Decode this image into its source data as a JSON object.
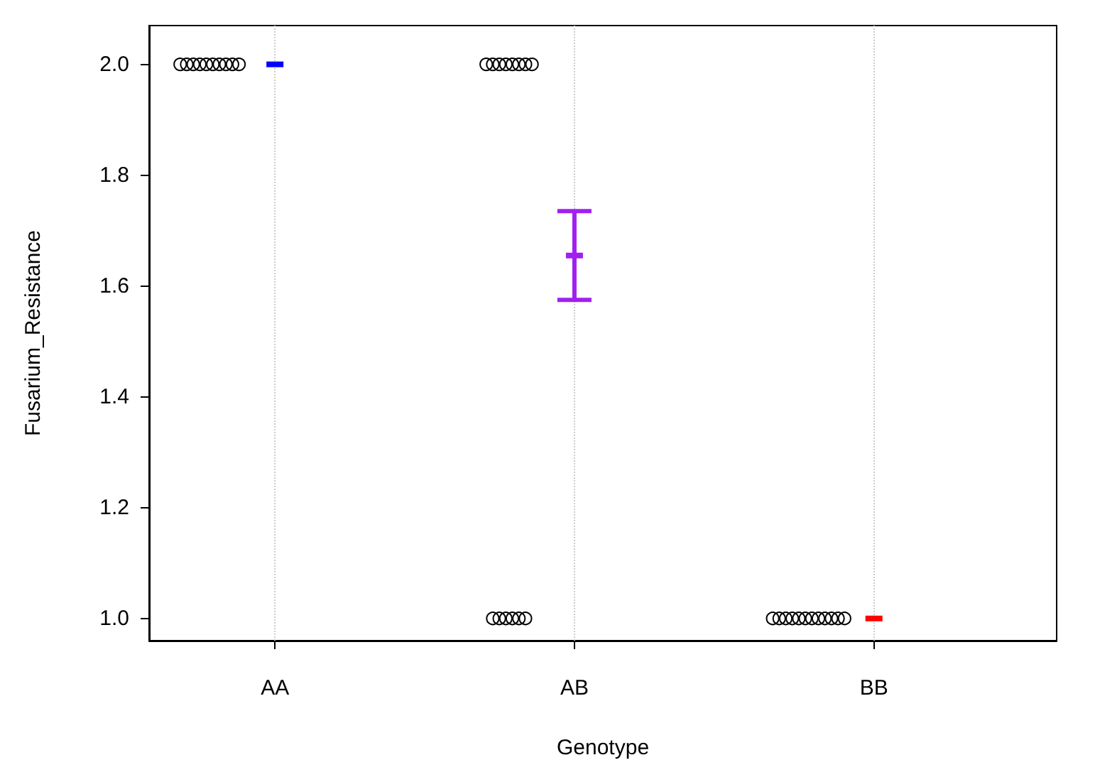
{
  "chart_data": {
    "type": "scatter",
    "xlabel": "Genotype",
    "ylabel": "Fusarium_Resistance",
    "categories": [
      "AA",
      "AB",
      "BB"
    ],
    "ylim": [
      0.96,
      2.07
    ],
    "yticks": [
      {
        "value": 1,
        "label": "1.0"
      },
      {
        "value": 1.2,
        "label": "1.2"
      },
      {
        "value": 1.4,
        "label": "1.4"
      },
      {
        "value": 1.6,
        "label": "1.6"
      },
      {
        "value": 1.8,
        "label": "1.8"
      },
      {
        "value": 2,
        "label": "2.0"
      }
    ],
    "grid": "x",
    "legend": false,
    "series": [
      {
        "type": "scatter",
        "marker": "circle",
        "color": "#000000",
        "x": [
          "AA",
          "AA",
          "AA",
          "AA",
          "AA",
          "AA",
          "AA",
          "AA",
          "AA",
          "AA",
          "AB",
          "AB",
          "AB",
          "AB",
          "AB",
          "AB",
          "AB",
          "AB",
          "AB",
          "AB",
          "AB",
          "AB",
          "AB",
          "AB",
          "BB",
          "BB",
          "BB",
          "BB",
          "BB",
          "BB",
          "BB",
          "BB",
          "BB",
          "BB",
          "BB",
          "BB"
        ],
        "values": [
          2,
          2,
          2,
          2,
          2,
          2,
          2,
          2,
          2,
          2,
          2,
          2,
          2,
          2,
          2,
          2,
          2,
          2,
          1,
          1,
          1,
          1,
          1,
          1,
          1,
          1,
          1,
          1,
          1,
          1,
          1,
          1,
          1,
          1,
          1,
          1
        ]
      },
      {
        "type": "scatter",
        "marker": "square",
        "colors": [
          "#0000ff",
          "#a020f0",
          "#ff0000"
        ],
        "x": [
          "AA",
          "AB",
          "BB"
        ],
        "values": [
          2,
          1.655,
          1
        ],
        "errors": [
          null,
          0.08,
          null
        ]
      }
    ]
  }
}
